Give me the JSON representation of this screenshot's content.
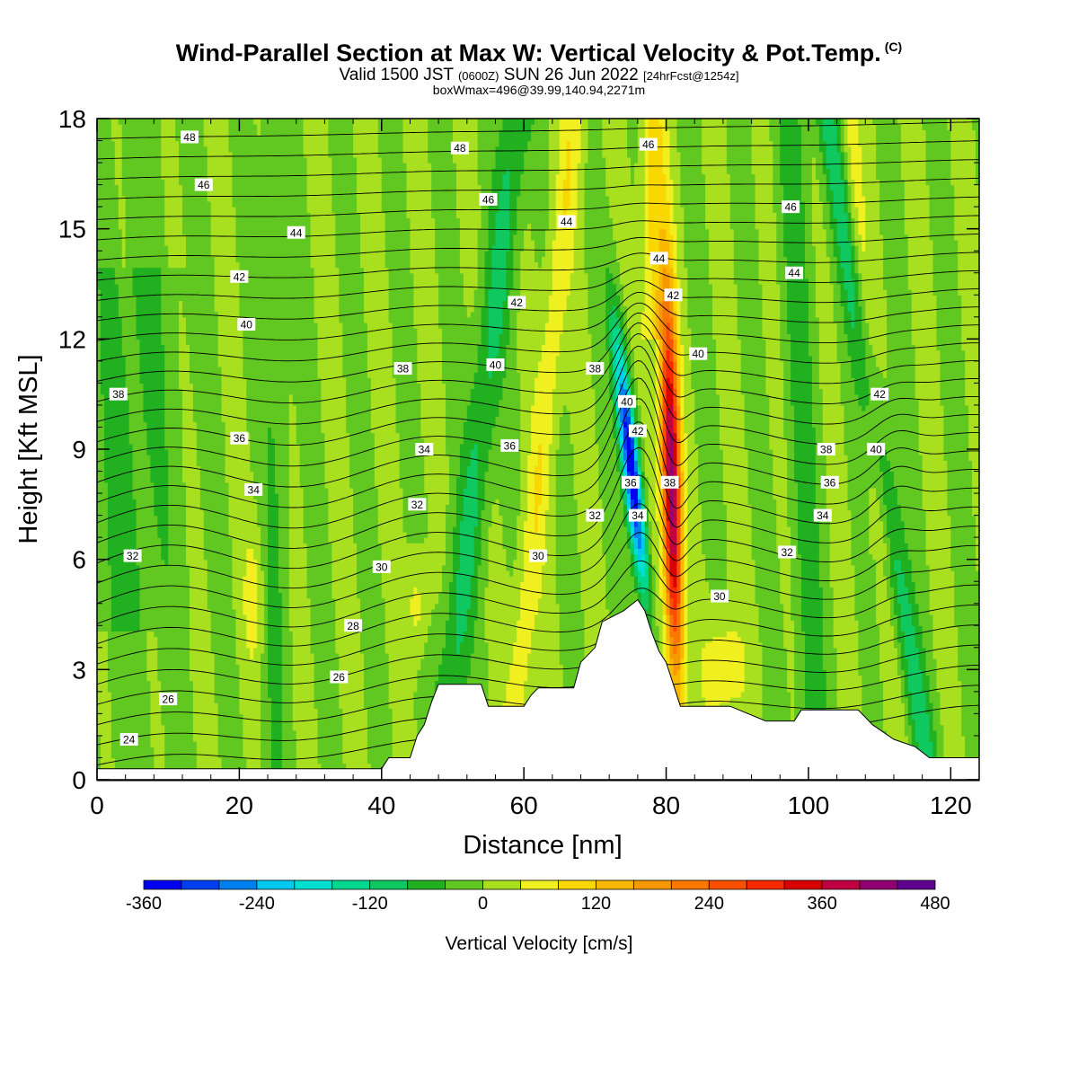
{
  "title": "Wind-Parallel Section at Max W: Vertical Velocity & Pot.Temp.",
  "title_mark": "(C)",
  "subtitle_a": "Valid 1500 JST",
  "subtitle_b": "(0600Z)",
  "subtitle_c": "SUN 26 Jun 2022",
  "subtitle_d": "[24hrFcst@1254z]",
  "subtitle2": "boxWmax=496@39.99,140.94,2271m",
  "chart_data": {
    "type": "contour",
    "xlabel": "Distance [nm]",
    "ylabel": "Height [Kft MSL]",
    "xlim": [
      0,
      124
    ],
    "ylim": [
      0,
      18
    ],
    "x_ticks": [
      "0",
      "20",
      "40",
      "60",
      "80",
      "100",
      "120"
    ],
    "y_ticks": [
      "0",
      "3",
      "6",
      "9",
      "12",
      "15",
      "18"
    ],
    "x_tick_values": [
      0,
      20,
      40,
      60,
      80,
      100,
      120
    ],
    "y_tick_values": [
      0,
      3,
      6,
      9,
      12,
      15,
      18
    ],
    "fill_variable": "Vertical Velocity",
    "colorbar": {
      "title": "Vertical Velocity [cm/s]",
      "labels": [
        "-360",
        "-240",
        "-120",
        "0",
        "120",
        "240",
        "360",
        "480"
      ],
      "label_values": [
        -360,
        -240,
        -120,
        0,
        120,
        240,
        360,
        480
      ],
      "levels": [
        -360,
        -320,
        -280,
        -240,
        -200,
        -160,
        -120,
        -80,
        -40,
        0,
        40,
        80,
        120,
        160,
        200,
        240,
        280,
        320,
        360,
        400,
        440,
        480
      ],
      "colors": [
        "#0000f0",
        "#0040f0",
        "#0080f0",
        "#00c8f0",
        "#00e0d0",
        "#00d890",
        "#10c860",
        "#20b020",
        "#60c820",
        "#a8e020",
        "#f0f020",
        "#f8d800",
        "#f8b800",
        "#f89800",
        "#f87800",
        "#f85000",
        "#f82800",
        "#d80000",
        "#c00040",
        "#900070",
        "#600090"
      ]
    },
    "contour_variable": "Potential temperature",
    "contour_labels": [
      {
        "text": "48",
        "x": 13,
        "y": 17.5
      },
      {
        "text": "46",
        "x": 15,
        "y": 16.2
      },
      {
        "text": "44",
        "x": 28,
        "y": 14.9
      },
      {
        "text": "42",
        "x": 20,
        "y": 13.7
      },
      {
        "text": "40",
        "x": 21,
        "y": 12.4
      },
      {
        "text": "38",
        "x": 3,
        "y": 10.5
      },
      {
        "text": "36",
        "x": 20,
        "y": 9.3
      },
      {
        "text": "34",
        "x": 22,
        "y": 7.9
      },
      {
        "text": "32",
        "x": 5,
        "y": 6.1
      },
      {
        "text": "26",
        "x": 10,
        "y": 2.2
      },
      {
        "text": "24",
        "x": 4.5,
        "y": 1.1
      },
      {
        "text": "48",
        "x": 51,
        "y": 17.2
      },
      {
        "text": "46",
        "x": 55,
        "y": 15.8
      },
      {
        "text": "44",
        "x": 66,
        "y": 15.2
      },
      {
        "text": "42",
        "x": 59,
        "y": 13.0
      },
      {
        "text": "40",
        "x": 56,
        "y": 11.3
      },
      {
        "text": "38",
        "x": 43,
        "y": 11.2
      },
      {
        "text": "36",
        "x": 58,
        "y": 9.1
      },
      {
        "text": "34",
        "x": 46,
        "y": 9.0
      },
      {
        "text": "32",
        "x": 45,
        "y": 7.5
      },
      {
        "text": "30",
        "x": 40,
        "y": 5.8
      },
      {
        "text": "28",
        "x": 36,
        "y": 4.2
      },
      {
        "text": "26",
        "x": 34,
        "y": 2.8
      },
      {
        "text": "30",
        "x": 62,
        "y": 6.1
      },
      {
        "text": "32",
        "x": 70,
        "y": 7.2
      },
      {
        "text": "38",
        "x": 70,
        "y": 11.2
      },
      {
        "text": "40",
        "x": 74.5,
        "y": 10.3
      },
      {
        "text": "42",
        "x": 76,
        "y": 9.5
      },
      {
        "text": "36",
        "x": 75,
        "y": 8.1
      },
      {
        "text": "34",
        "x": 76,
        "y": 7.2
      },
      {
        "text": "38",
        "x": 80.5,
        "y": 8.1
      },
      {
        "text": "46",
        "x": 77.5,
        "y": 17.3
      },
      {
        "text": "44",
        "x": 79,
        "y": 14.2
      },
      {
        "text": "42",
        "x": 81,
        "y": 13.2
      },
      {
        "text": "40",
        "x": 84.5,
        "y": 11.6
      },
      {
        "text": "30",
        "x": 87.5,
        "y": 5.0
      },
      {
        "text": "46",
        "x": 97.5,
        "y": 15.6
      },
      {
        "text": "44",
        "x": 98,
        "y": 13.8
      },
      {
        "text": "42",
        "x": 110,
        "y": 10.5
      },
      {
        "text": "40",
        "x": 109.5,
        "y": 9.0
      },
      {
        "text": "38",
        "x": 102.5,
        "y": 9.0
      },
      {
        "text": "36",
        "x": 103,
        "y": 8.1
      },
      {
        "text": "34",
        "x": 102,
        "y": 7.2
      },
      {
        "text": "32",
        "x": 97,
        "y": 6.2
      }
    ],
    "terrain_kft": [
      [
        0,
        0.3
      ],
      [
        40,
        0.3
      ],
      [
        41,
        0.6
      ],
      [
        44,
        0.6
      ],
      [
        45,
        1.2
      ],
      [
        46,
        1.5
      ],
      [
        47,
        2.1
      ],
      [
        48,
        2.6
      ],
      [
        54,
        2.6
      ],
      [
        55,
        2.0
      ],
      [
        60,
        2.0
      ],
      [
        61,
        2.3
      ],
      [
        62,
        2.5
      ],
      [
        67,
        2.5
      ],
      [
        68,
        3.2
      ],
      [
        70,
        3.6
      ],
      [
        71,
        4.3
      ],
      [
        74,
        4.6
      ],
      [
        76,
        4.9
      ],
      [
        77,
        4.6
      ],
      [
        78,
        4.0
      ],
      [
        79,
        3.5
      ],
      [
        80,
        3.2
      ],
      [
        81,
        2.6
      ],
      [
        82,
        2.0
      ],
      [
        89,
        2.0
      ],
      [
        94,
        1.6
      ],
      [
        98,
        1.6
      ],
      [
        99,
        1.9
      ],
      [
        101,
        1.9
      ],
      [
        107,
        1.9
      ],
      [
        109,
        1.5
      ],
      [
        112,
        1.1
      ],
      [
        115,
        0.9
      ],
      [
        117,
        0.6
      ],
      [
        124,
        0.6
      ]
    ]
  }
}
